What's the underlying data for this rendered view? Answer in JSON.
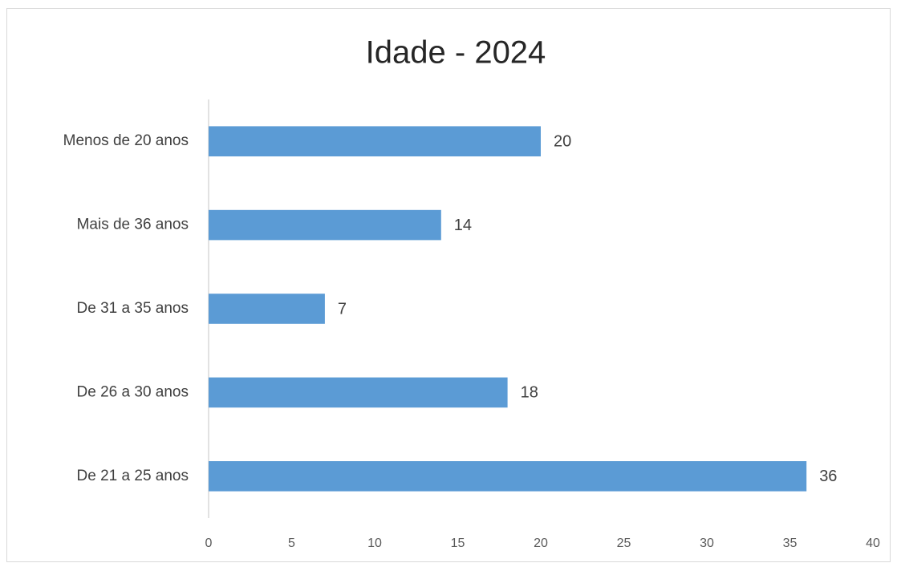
{
  "chart_data": {
    "type": "hbar",
    "title": "Idade - 2024",
    "categories": [
      "De 21 a 25 anos",
      "De 26 a 30 anos",
      "De 31 a 35 anos",
      "Mais de 36 anos",
      "Menos de 20 anos"
    ],
    "values": [
      36,
      18,
      7,
      14,
      20
    ],
    "color": "#5b9bd5",
    "xlim": [
      0,
      40
    ],
    "xticks": [
      0,
      5,
      10,
      15,
      20,
      25,
      30,
      35,
      40
    ],
    "grid": false
  }
}
